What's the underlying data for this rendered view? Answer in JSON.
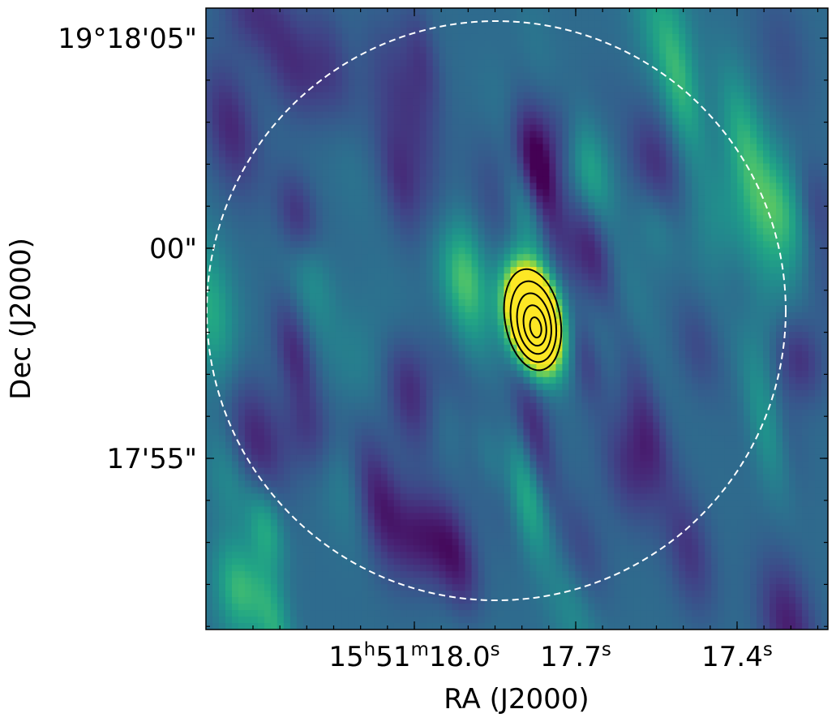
{
  "chart_data": {
    "type": "heatmap",
    "title": "",
    "xlabel": "RA (J2000)",
    "ylabel": "Dec (J2000)",
    "x_axis": {
      "ticks": [
        {
          "ra_s": 18.0,
          "parts": [
            [
              "15",
              ""
            ],
            [
              "h",
              "sup"
            ],
            [
              "51",
              ""
            ],
            [
              "m",
              "sup"
            ],
            [
              "18.0",
              ""
            ],
            [
              "s",
              "sup"
            ]
          ]
        },
        {
          "ra_s": 17.7,
          "parts": [
            [
              "17.7",
              ""
            ],
            [
              "s",
              "sup"
            ]
          ]
        },
        {
          "ra_s": 17.4,
          "parts": [
            [
              "17.4",
              ""
            ],
            [
              "s",
              "sup"
            ]
          ]
        }
      ]
    },
    "y_axis": {
      "ticks": [
        {
          "dec_arcsec_offset": 5,
          "label": "19°18'05\""
        },
        {
          "dec_arcsec_offset": 0,
          "label": "00\""
        },
        {
          "dec_arcsec_offset": -5,
          "label": "17'55\""
        }
      ]
    },
    "grid": false,
    "colormap": "viridis",
    "source": {
      "label": "",
      "ra_s": 17.78,
      "dec_arcsec_offset": -1.7,
      "peak_level": 1.0,
      "orientation_deg": -10
    },
    "contours": {
      "color": "#000000",
      "levels": 5
    },
    "primary_beam": {
      "style": "dashed",
      "color": "#ffffff"
    },
    "secondary_features": [
      {
        "kind": "negative",
        "ra_s": 17.77,
        "dec_arcsec_offset": 1.7
      },
      {
        "kind": "positive",
        "ra_s": 17.79,
        "dec_arcsec_offset": -5.8
      }
    ]
  }
}
